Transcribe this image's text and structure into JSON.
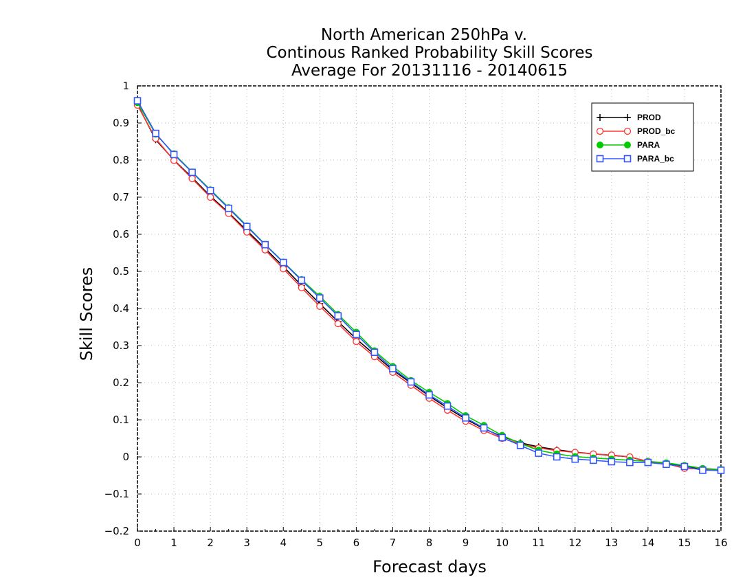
{
  "chart_data": {
    "type": "line",
    "title_lines": [
      "North American 250hPa v.",
      "Continous Ranked Probability Skill Scores",
      "Average For 20131116 - 20140615"
    ],
    "xlabel": "Forecast days",
    "ylabel": "Skill Scores",
    "xlim": [
      0,
      16
    ],
    "ylim": [
      -0.2,
      1
    ],
    "x_ticks": [
      "0",
      "1",
      "2",
      "3",
      "4",
      "5",
      "6",
      "7",
      "8",
      "9",
      "10",
      "11",
      "12",
      "13",
      "14",
      "15",
      "16"
    ],
    "y_ticks": [
      "1",
      "0.9",
      "0.8",
      "0.7",
      "0.6",
      "0.5",
      "0.4",
      "0.3",
      "0.2",
      "0.1",
      "0",
      "−0.1",
      "−0.2"
    ],
    "grid": true,
    "legend_position": "top-right",
    "x": [
      0,
      0.5,
      1,
      1.5,
      2,
      2.5,
      3,
      3.5,
      4,
      4.5,
      5,
      5.5,
      6,
      6.5,
      7,
      7.5,
      8,
      8.5,
      9,
      9.5,
      10,
      10.5,
      11,
      11.5,
      12,
      12.5,
      13,
      13.5,
      14,
      14.5,
      15,
      15.5,
      16
    ],
    "series": [
      {
        "name": "PROD",
        "color": "#000000",
        "marker": "plus",
        "values": [
          0.95,
          0.855,
          0.8,
          0.753,
          0.703,
          0.658,
          0.61,
          0.562,
          0.513,
          0.462,
          0.413,
          0.365,
          0.318,
          0.276,
          0.234,
          0.199,
          0.164,
          0.132,
          0.102,
          0.076,
          0.055,
          0.038,
          0.027,
          0.019,
          0.013,
          0.008,
          0.004,
          0.0,
          -0.013,
          -0.017,
          -0.025,
          -0.034,
          -0.037
        ]
      },
      {
        "name": "PROD_bc",
        "color": "#ff3333",
        "marker": "circle-open",
        "values": [
          0.948,
          0.858,
          0.799,
          0.75,
          0.7,
          0.656,
          0.606,
          0.558,
          0.507,
          0.456,
          0.406,
          0.359,
          0.311,
          0.27,
          0.228,
          0.193,
          0.158,
          0.126,
          0.096,
          0.071,
          0.05,
          0.035,
          0.024,
          0.017,
          0.012,
          0.008,
          0.005,
          0.0,
          -0.012,
          -0.018,
          -0.031,
          -0.033,
          -0.036
        ]
      },
      {
        "name": "PARA",
        "color": "#00cc00",
        "marker": "circle-filled",
        "values": [
          0.955,
          0.87,
          0.817,
          0.768,
          0.72,
          0.672,
          0.623,
          0.573,
          0.525,
          0.478,
          0.433,
          0.384,
          0.336,
          0.286,
          0.244,
          0.206,
          0.174,
          0.144,
          0.111,
          0.085,
          0.058,
          0.036,
          0.018,
          0.008,
          0.001,
          -0.003,
          -0.006,
          -0.009,
          -0.012,
          -0.016,
          -0.023,
          -0.031,
          -0.034
        ]
      },
      {
        "name": "PARA_bc",
        "color": "#3355ff",
        "marker": "square-open",
        "values": [
          0.96,
          0.872,
          0.815,
          0.767,
          0.718,
          0.67,
          0.621,
          0.572,
          0.524,
          0.476,
          0.428,
          0.38,
          0.33,
          0.282,
          0.238,
          0.202,
          0.167,
          0.137,
          0.105,
          0.078,
          0.052,
          0.031,
          0.01,
          0.0,
          -0.006,
          -0.009,
          -0.013,
          -0.015,
          -0.015,
          -0.02,
          -0.026,
          -0.036,
          -0.036
        ]
      }
    ]
  }
}
